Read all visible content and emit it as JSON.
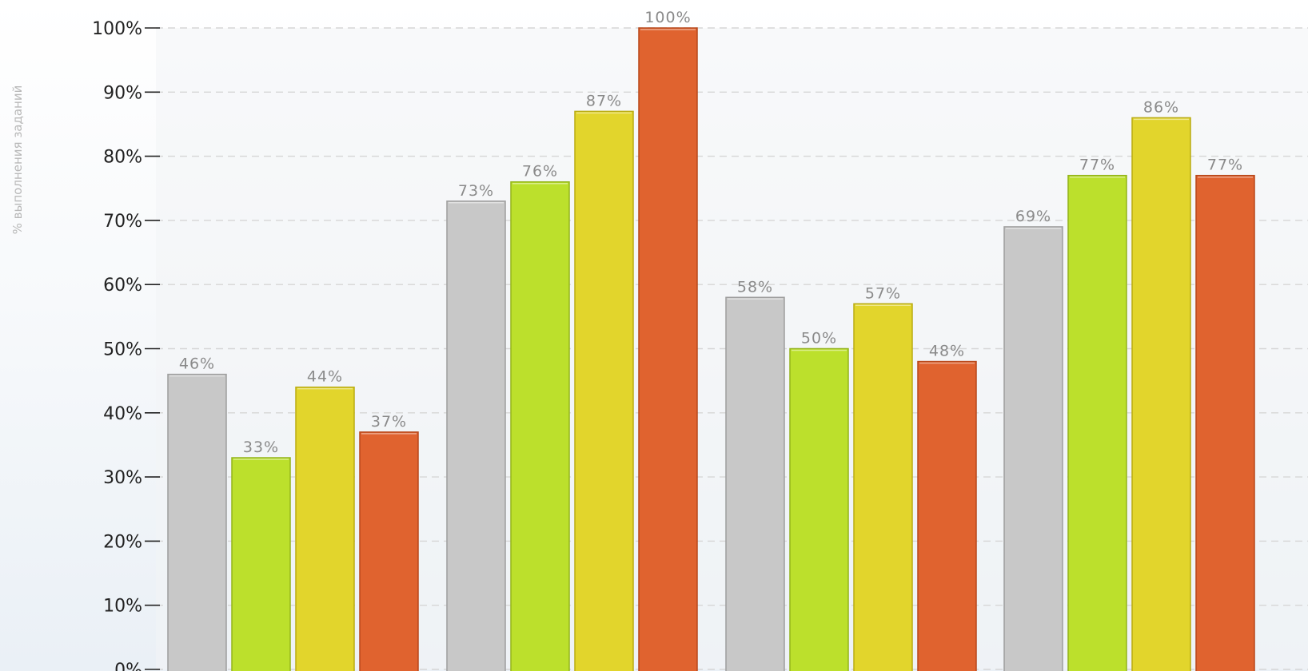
{
  "chart_data": {
    "type": "bar",
    "ylabel": "% выполнения заданий",
    "ylim": [
      0,
      100
    ],
    "yticks": [
      0,
      10,
      20,
      30,
      40,
      50,
      60,
      70,
      80,
      90,
      100
    ],
    "tick_suffix": "%",
    "grid": true,
    "groups": [
      {
        "values": [
          46,
          33,
          44,
          37
        ],
        "labels": [
          "46%",
          "33%",
          "44%",
          "37%"
        ]
      },
      {
        "values": [
          73,
          76,
          87,
          100
        ],
        "labels": [
          "73%",
          "76%",
          "87%",
          "100%"
        ]
      },
      {
        "values": [
          58,
          50,
          57,
          48
        ],
        "labels": [
          "58%",
          "50%",
          "57%",
          "48%"
        ]
      },
      {
        "values": [
          69,
          77,
          86,
          77
        ],
        "labels": [
          "69%",
          "77%",
          "86%",
          "77%"
        ]
      }
    ],
    "series_colors": [
      {
        "fill": "#c8c8c8",
        "stroke": "#9e9e9e"
      },
      {
        "fill": "#bce02c",
        "stroke": "#93b41a"
      },
      {
        "fill": "#e2d52c",
        "stroke": "#b9ab12"
      },
      {
        "fill": "#e0632f",
        "stroke": "#b8481b"
      }
    ],
    "colors": {
      "grid": "#d6d6d6",
      "axis_text": "#222222",
      "value_text": "#8a8a8a",
      "ylabel_text": "#b8b8b8",
      "plot_band": "#f2f4f6"
    }
  }
}
